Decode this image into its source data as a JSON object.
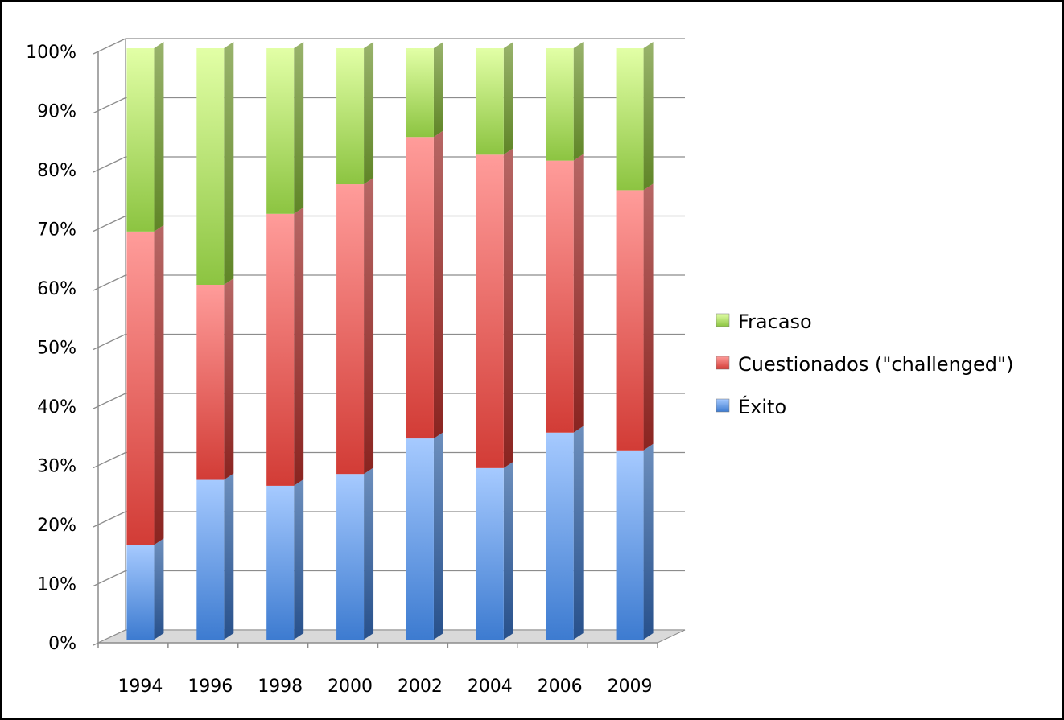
{
  "chart_data": {
    "type": "bar",
    "stacked": true,
    "percent_stacked": true,
    "three_d": true,
    "categories": [
      "1994",
      "1996",
      "1998",
      "2000",
      "2002",
      "2004",
      "2006",
      "2009"
    ],
    "series": [
      {
        "name": "Éxito",
        "values": [
          16,
          27,
          26,
          28,
          34,
          29,
          35,
          32
        ],
        "color": "#4a86d6"
      },
      {
        "name": "Cuestionados (\"challenged\")",
        "values": [
          53,
          33,
          46,
          49,
          51,
          53,
          46,
          44
        ],
        "color": "#e0504d"
      },
      {
        "name": "Fracaso",
        "values": [
          31,
          40,
          28,
          23,
          15,
          18,
          19,
          24
        ],
        "color": "#a3d65c"
      }
    ],
    "y_ticks": [
      "0%",
      "10%",
      "20%",
      "30%",
      "40%",
      "50%",
      "60%",
      "70%",
      "80%",
      "90%",
      "100%"
    ],
    "ylim": [
      0,
      100
    ],
    "grid": true,
    "legend_position": "right",
    "legend_order": [
      "Fracaso",
      "Cuestionados (\"challenged\")",
      "Éxito"
    ],
    "title": "",
    "xlabel": "",
    "ylabel": ""
  }
}
